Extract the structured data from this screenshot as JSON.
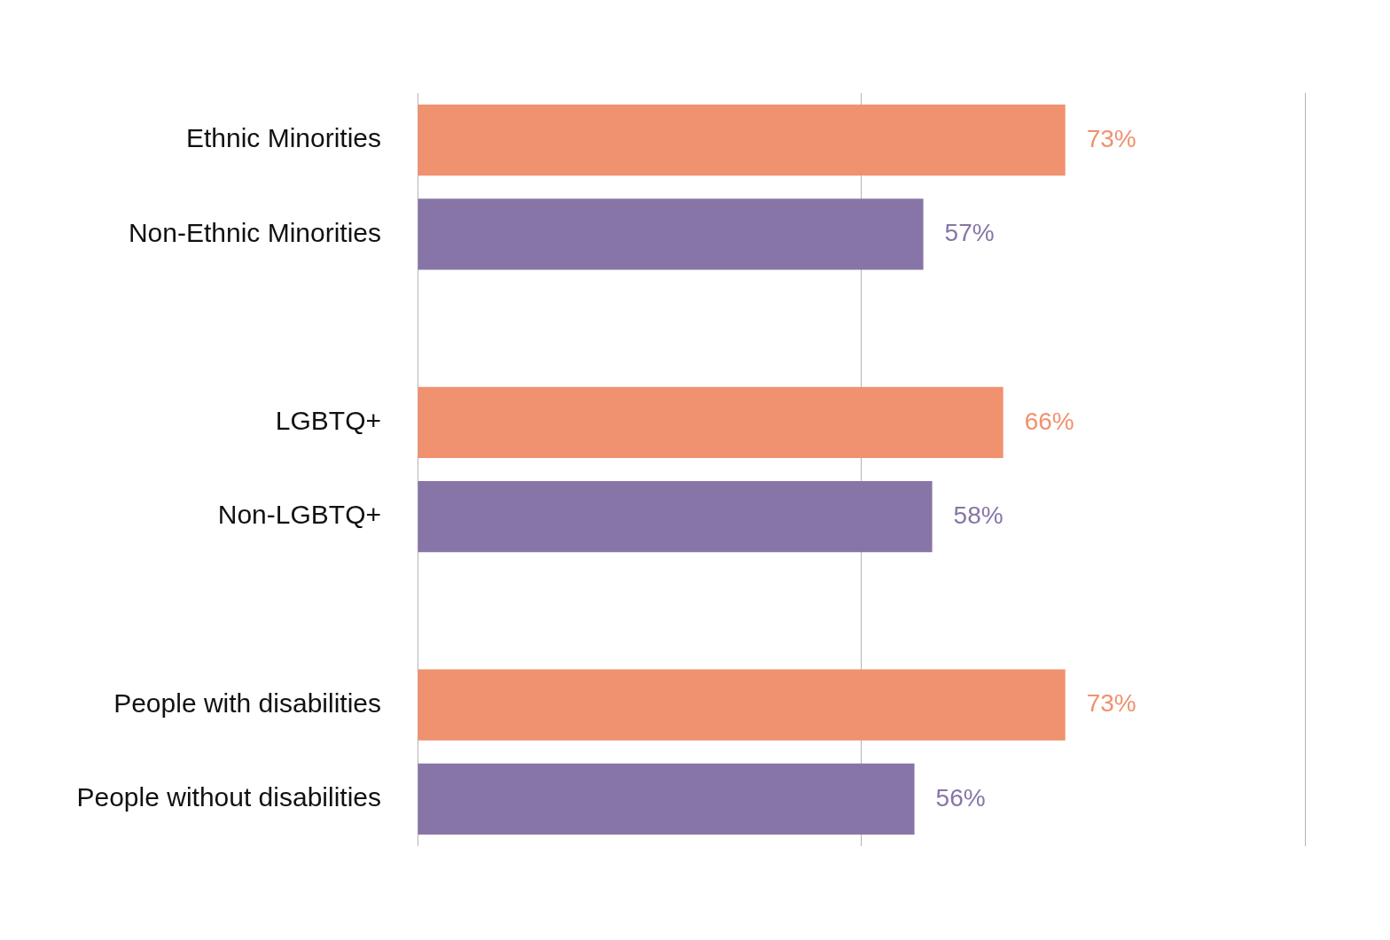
{
  "chart_data": {
    "type": "bar",
    "orientation": "horizontal",
    "categories": [
      "Ethnic Minorities",
      "Non-Ethnic Minorities",
      null,
      "LGBTQ+",
      "Non-LGBTQ+",
      null,
      "People with disabilities",
      "People without disabilities"
    ],
    "values": [
      73,
      57,
      null,
      66,
      58,
      null,
      73,
      56
    ],
    "value_labels": [
      "73%",
      "57%",
      null,
      "66%",
      "58%",
      null,
      "73%",
      "56%"
    ],
    "colors": [
      "#f0916f",
      "#8775a7",
      null,
      "#f0916f",
      "#8775a7",
      null,
      "#f0916f",
      "#8775a7"
    ],
    "xlim": [
      0,
      100
    ],
    "xticks": [
      0,
      50,
      100
    ],
    "grid": true,
    "tick_labels": "y",
    "data_labels": true
  }
}
